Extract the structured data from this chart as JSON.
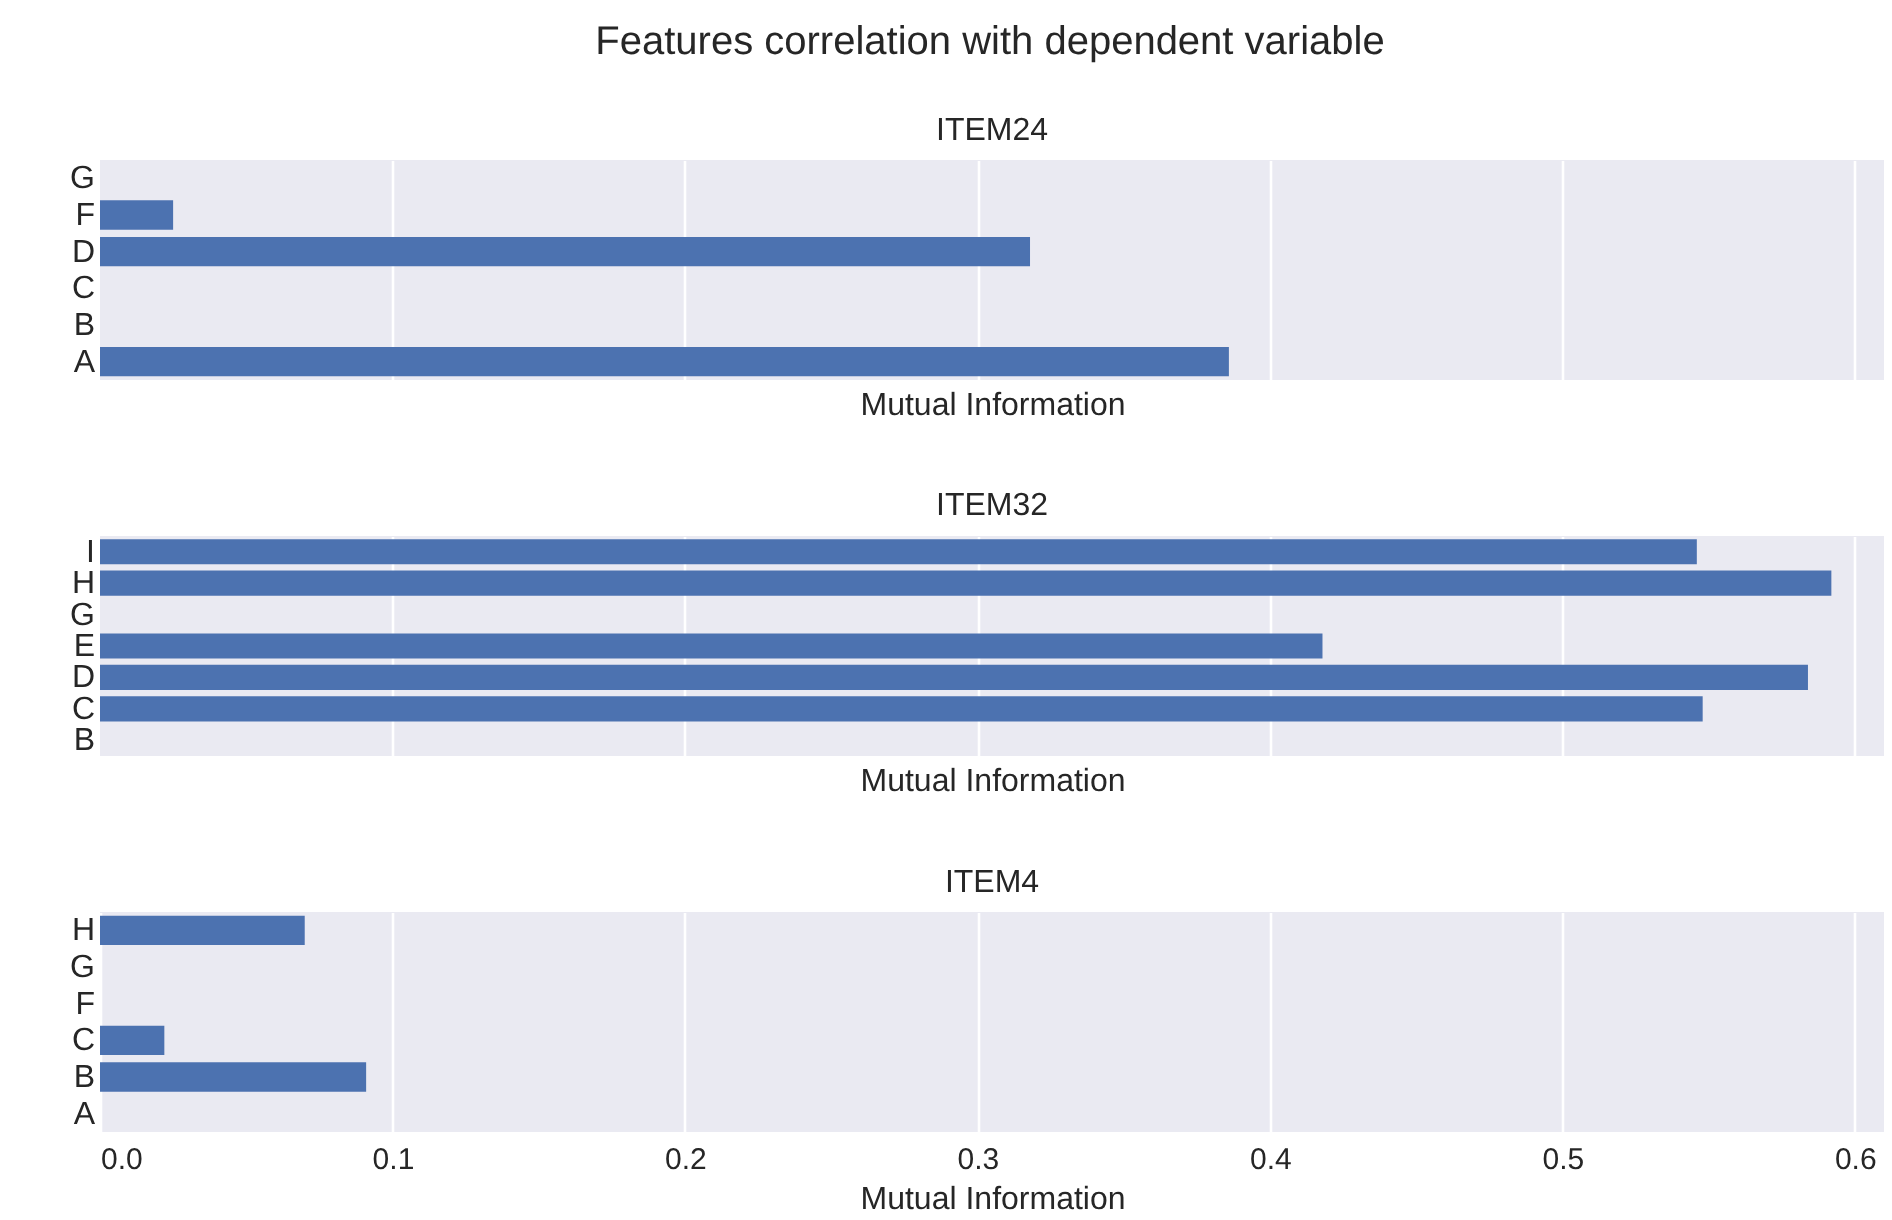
{
  "chart_data": [
    {
      "type": "other",
      "title": "Features correlation with dependent variable"
    },
    {
      "type": "bar",
      "orientation": "horizontal",
      "title": "ITEM24",
      "xlabel": "Mutual Information",
      "categories": [
        "G",
        "F",
        "D",
        "C",
        "B",
        "A"
      ],
      "values": [
        null,
        0.025,
        0.318,
        null,
        null,
        0.386
      ],
      "color": "#4c72b0",
      "xlim": [
        0,
        0.61
      ],
      "xticks": [
        0.1,
        0.2,
        0.3,
        0.4,
        0.5,
        0.6
      ],
      "grid": "x",
      "tick_labels": "y"
    },
    {
      "type": "bar",
      "orientation": "horizontal",
      "title": "ITEM32",
      "xlabel": "Mutual Information",
      "categories": [
        "I",
        "H",
        "G",
        "E",
        "D",
        "C",
        "B"
      ],
      "values": [
        0.546,
        0.592,
        null,
        0.418,
        0.584,
        0.548,
        null
      ],
      "color": "#4c72b0",
      "xlim": [
        0,
        0.61
      ],
      "xticks": [
        0.1,
        0.2,
        0.3,
        0.4,
        0.5,
        0.6
      ],
      "grid": "x",
      "tick_labels": "y"
    },
    {
      "type": "bar",
      "orientation": "horizontal",
      "title": "ITEM4",
      "xlabel": "Mutual Information",
      "categories": [
        "H",
        "G",
        "F",
        "C",
        "B",
        "A"
      ],
      "values": [
        0.07,
        null,
        null,
        0.022,
        0.091,
        null
      ],
      "color": "#4c72b0",
      "xlim": [
        0,
        0.61
      ],
      "xticks": [
        {
          "value": 0,
          "label": "0.0"
        },
        0.1,
        0.2,
        0.3,
        0.4,
        0.5,
        0.6
      ],
      "grid": "x"
    }
  ]
}
